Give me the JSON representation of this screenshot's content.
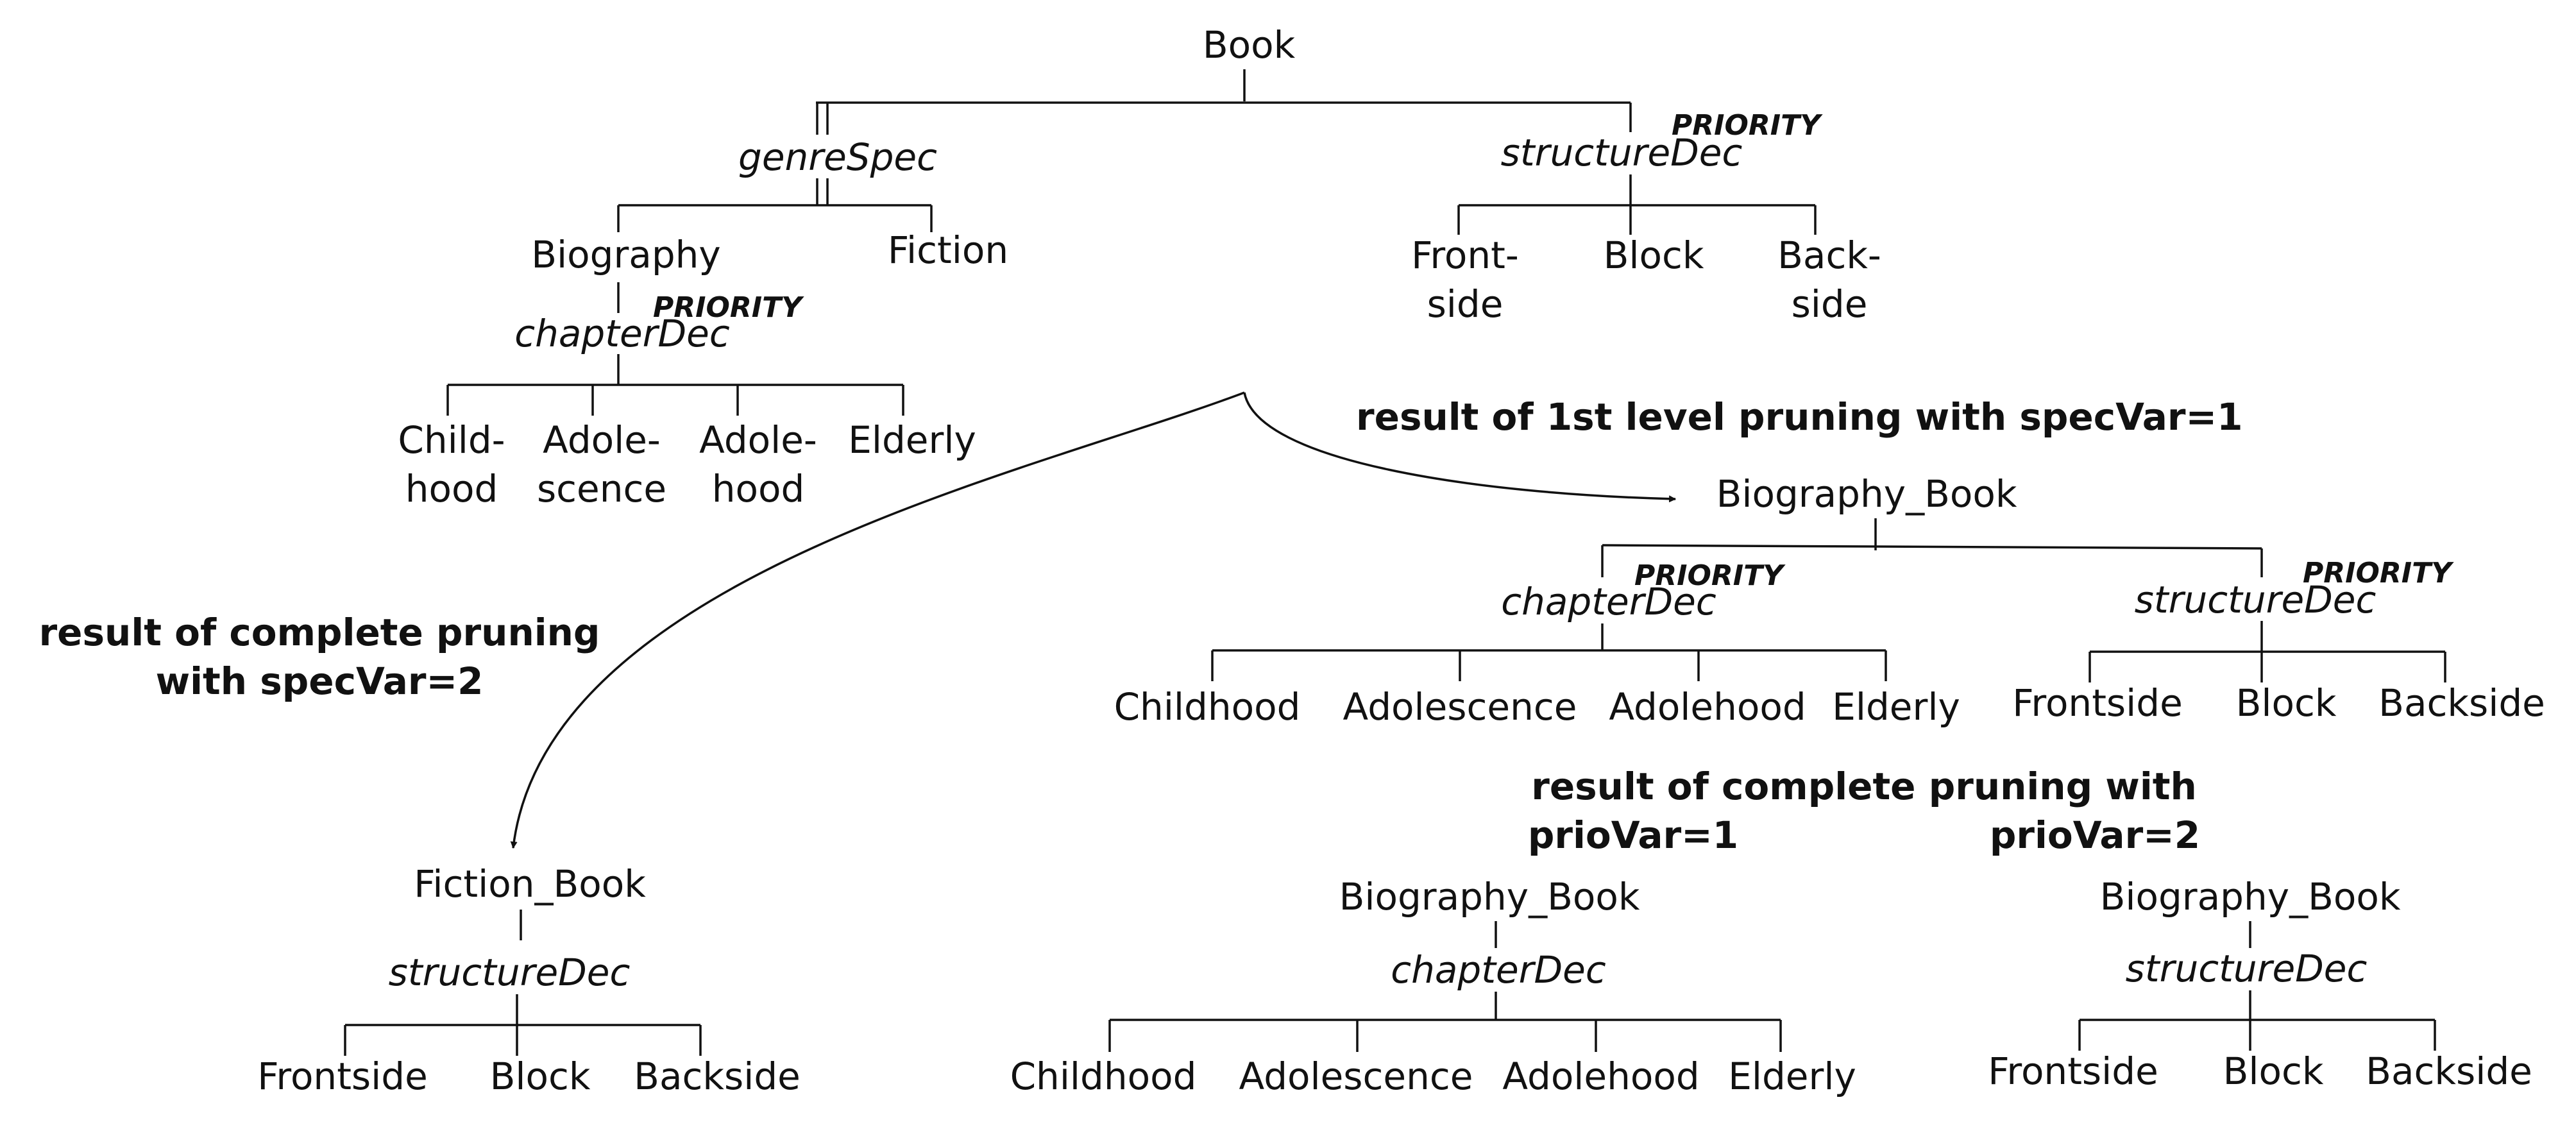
{
  "colors": {
    "ink": "#111111",
    "background": "#ffffff"
  },
  "tree_book": {
    "root": "Book",
    "genre_dec": "genreSpec",
    "structure_dec": "structureDec",
    "structure_priority": "PRIORITY",
    "biography": "Biography",
    "fiction": "Fiction",
    "chapter_dec": "chapterDec",
    "chapter_priority": "PRIORITY",
    "structure_children": [
      {
        "line1": "Front-",
        "line2": "side"
      },
      {
        "line1": "Block",
        "line2": ""
      },
      {
        "line1": "Back-",
        "line2": "side"
      }
    ],
    "chapter_children": [
      {
        "line1": "Child-",
        "line2": "hood"
      },
      {
        "line1": "Adole-",
        "line2": "scence"
      },
      {
        "line1": "Adole-",
        "line2": "hood"
      },
      {
        "line1": "Elderly",
        "line2": ""
      }
    ]
  },
  "captions": {
    "first_level": "result of 1st level pruning with specVar=1",
    "complete_spec_line1": "result of complete pruning",
    "complete_spec_line2": "with specVar=2",
    "complete_prio_line1": "result of complete pruning with",
    "prio_var_1": "prioVar=1",
    "prio_var_2": "prioVar=2"
  },
  "tree_first_level": {
    "root": "Biography_Book",
    "chapter_dec": "chapterDec",
    "chapter_priority": "PRIORITY",
    "structure_dec": "structureDec",
    "structure_priority": "PRIORITY",
    "chapter_children": [
      "Childhood",
      "Adolescence",
      "Adolehood",
      "Elderly"
    ],
    "structure_children": [
      "Frontside",
      "Block",
      "Backside"
    ]
  },
  "tree_fiction": {
    "root": "Fiction_Book",
    "structure_dec": "structureDec",
    "structure_children": [
      "Frontside",
      "Block",
      "Backside"
    ]
  },
  "tree_prio1": {
    "root": "Biography_Book",
    "chapter_dec": "chapterDec",
    "chapter_children": [
      "Childhood",
      "Adolescence",
      "Adolehood",
      "Elderly"
    ]
  },
  "tree_prio2": {
    "root": "Biography_Book",
    "structure_dec": "structureDec",
    "structure_children": [
      "Frontside",
      "Block",
      "Backside"
    ]
  }
}
